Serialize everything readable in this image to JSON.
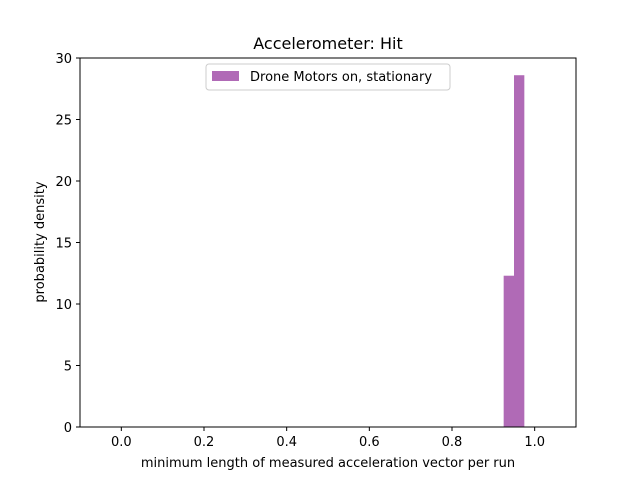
{
  "chart_data": {
    "type": "bar",
    "title": "Accelerometer: Hit",
    "xlabel": "minimum length of measured acceleration vector per run",
    "ylabel": "probability density",
    "xlim": [
      -0.1,
      1.1
    ],
    "ylim": [
      0,
      30
    ],
    "xticks": [
      "0.0",
      "0.2",
      "0.4",
      "0.6",
      "0.8",
      "1.0"
    ],
    "yticks": [
      "0",
      "5",
      "10",
      "15",
      "20",
      "25",
      "30"
    ],
    "grid": false,
    "legend_position": "top-center",
    "series": [
      {
        "name": "Drone Motors on, stationary",
        "color": "#b06ab6",
        "bins": [
          {
            "x0": 0.925,
            "x1": 0.95,
            "value": 12.3
          },
          {
            "x0": 0.95,
            "x1": 0.975,
            "value": 28.6
          }
        ]
      }
    ]
  }
}
